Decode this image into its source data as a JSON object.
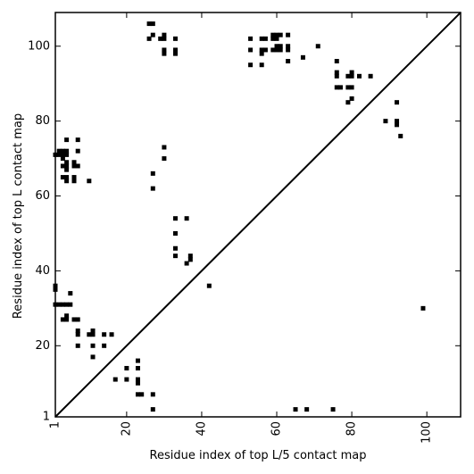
{
  "chart_data": {
    "type": "scatter",
    "title": "",
    "xlabel": "Residue index of top L/5 contact map",
    "ylabel": "Residue index of top L contact map",
    "xlim": [
      1,
      109
    ],
    "ylim": [
      1,
      109
    ],
    "x_ticks": [
      1,
      20,
      40,
      60,
      80,
      100
    ],
    "x_tick_labels": [
      "1",
      "20",
      "40",
      "60",
      "80",
      "100"
    ],
    "y_ticks": [
      1,
      20,
      40,
      60,
      80,
      100
    ],
    "y_tick_labels": [
      "1",
      "20",
      "40",
      "60",
      "80",
      "100"
    ],
    "x_tick_rotation": -90,
    "grid": false,
    "legend": "none",
    "diagonal_line": true,
    "marker": "square",
    "marker_color": "#000000",
    "series": [
      {
        "points": [
          [
            26,
            106
          ],
          [
            27,
            106
          ],
          [
            27,
            103
          ],
          [
            26,
            102
          ],
          [
            29,
            102
          ],
          [
            30,
            103
          ],
          [
            30,
            102
          ],
          [
            33,
            102
          ],
          [
            30,
            99
          ],
          [
            30,
            98
          ],
          [
            33,
            99
          ],
          [
            33,
            98
          ],
          [
            53,
            102
          ],
          [
            56,
            102
          ],
          [
            57,
            102
          ],
          [
            59,
            103
          ],
          [
            60,
            103
          ],
          [
            61,
            103
          ],
          [
            59,
            102
          ],
          [
            60,
            102
          ],
          [
            63,
            103
          ],
          [
            53,
            99
          ],
          [
            56,
            99
          ],
          [
            57,
            99
          ],
          [
            59,
            99
          ],
          [
            60,
            99
          ],
          [
            61,
            99
          ],
          [
            60,
            100
          ],
          [
            61,
            100
          ],
          [
            63,
            100
          ],
          [
            63,
            99
          ],
          [
            71,
            100
          ],
          [
            53,
            95
          ],
          [
            56,
            95
          ],
          [
            56,
            98
          ],
          [
            63,
            96
          ],
          [
            67,
            97
          ],
          [
            76,
            96
          ],
          [
            76,
            93
          ],
          [
            76,
            92
          ],
          [
            76,
            89
          ],
          [
            77,
            89
          ],
          [
            79,
            92
          ],
          [
            80,
            93
          ],
          [
            80,
            92
          ],
          [
            79,
            89
          ],
          [
            80,
            89
          ],
          [
            82,
            92
          ],
          [
            85,
            92
          ],
          [
            79,
            85
          ],
          [
            80,
            86
          ],
          [
            89,
            80
          ],
          [
            92,
            80
          ],
          [
            92,
            79
          ],
          [
            92,
            85
          ],
          [
            93,
            76
          ],
          [
            1,
            71
          ],
          [
            2,
            71
          ],
          [
            2,
            72
          ],
          [
            3,
            72
          ],
          [
            3,
            71
          ],
          [
            4,
            72
          ],
          [
            4,
            71
          ],
          [
            3,
            70
          ],
          [
            3,
            68
          ],
          [
            4,
            69
          ],
          [
            4,
            68
          ],
          [
            4,
            67
          ],
          [
            6,
            68
          ],
          [
            6,
            69
          ],
          [
            7,
            68
          ],
          [
            4,
            75
          ],
          [
            7,
            75
          ],
          [
            7,
            72
          ],
          [
            3,
            65
          ],
          [
            4,
            65
          ],
          [
            4,
            64
          ],
          [
            6,
            65
          ],
          [
            6,
            64
          ],
          [
            10,
            64
          ],
          [
            30,
            73
          ],
          [
            30,
            70
          ],
          [
            27,
            66
          ],
          [
            27,
            62
          ],
          [
            33,
            54
          ],
          [
            36,
            54
          ],
          [
            33,
            50
          ],
          [
            33,
            46
          ],
          [
            33,
            44
          ],
          [
            36,
            42
          ],
          [
            37,
            44
          ],
          [
            37,
            43
          ],
          [
            42,
            36
          ],
          [
            1,
            36
          ],
          [
            1,
            35
          ],
          [
            1,
            31
          ],
          [
            2,
            31
          ],
          [
            3,
            31
          ],
          [
            4,
            31
          ],
          [
            5,
            31
          ],
          [
            3,
            27
          ],
          [
            4,
            28
          ],
          [
            4,
            27
          ],
          [
            5,
            34
          ],
          [
            6,
            27
          ],
          [
            7,
            27
          ],
          [
            7,
            24
          ],
          [
            7,
            23
          ],
          [
            7,
            20
          ],
          [
            10,
            23
          ],
          [
            11,
            24
          ],
          [
            11,
            23
          ],
          [
            14,
            23
          ],
          [
            16,
            23
          ],
          [
            11,
            20
          ],
          [
            14,
            20
          ],
          [
            11,
            17
          ],
          [
            17,
            11
          ],
          [
            20,
            11
          ],
          [
            20,
            14
          ],
          [
            23,
            16
          ],
          [
            23,
            14
          ],
          [
            23,
            11
          ],
          [
            23,
            10
          ],
          [
            23,
            7
          ],
          [
            24,
            7
          ],
          [
            27,
            7
          ],
          [
            27,
            3
          ],
          [
            65,
            3
          ],
          [
            68,
            3
          ],
          [
            75,
            3
          ],
          [
            99,
            30
          ]
        ]
      }
    ]
  }
}
